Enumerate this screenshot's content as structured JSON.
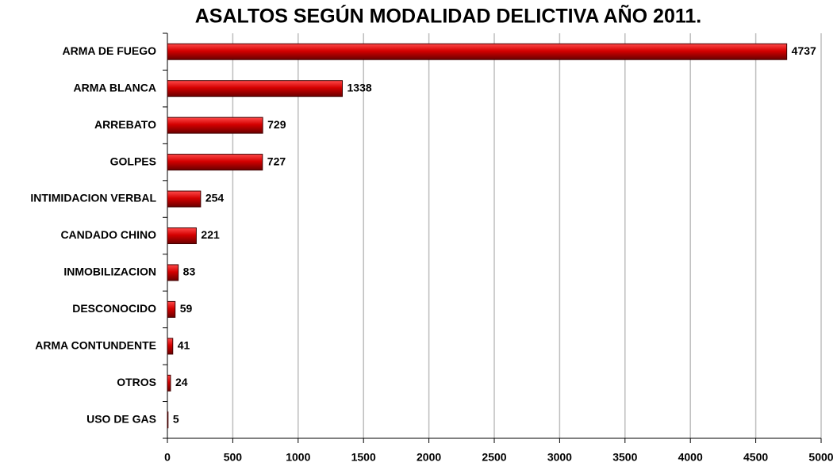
{
  "chart_data": {
    "type": "bar",
    "orientation": "horizontal",
    "title": "ASALTOS SEGÚN MODALIDAD DELICTIVA AÑO 2011.",
    "categories": [
      "ARMA DE FUEGO",
      "ARMA BLANCA",
      "ARREBATO",
      "GOLPES",
      "INTIMIDACION VERBAL",
      "CANDADO CHINO",
      "INMOBILIZACION",
      "DESCONOCIDO",
      "ARMA CONTUNDENTE",
      "OTROS",
      "USO DE GAS"
    ],
    "values": [
      4737,
      1338,
      729,
      727,
      254,
      221,
      83,
      59,
      41,
      24,
      5
    ],
    "color": "#c00000",
    "xlim": [
      0,
      5000
    ],
    "xticks": [
      0,
      500,
      1000,
      1500,
      2000,
      2500,
      3000,
      3500,
      4000,
      4500,
      5000
    ],
    "grid": true
  }
}
